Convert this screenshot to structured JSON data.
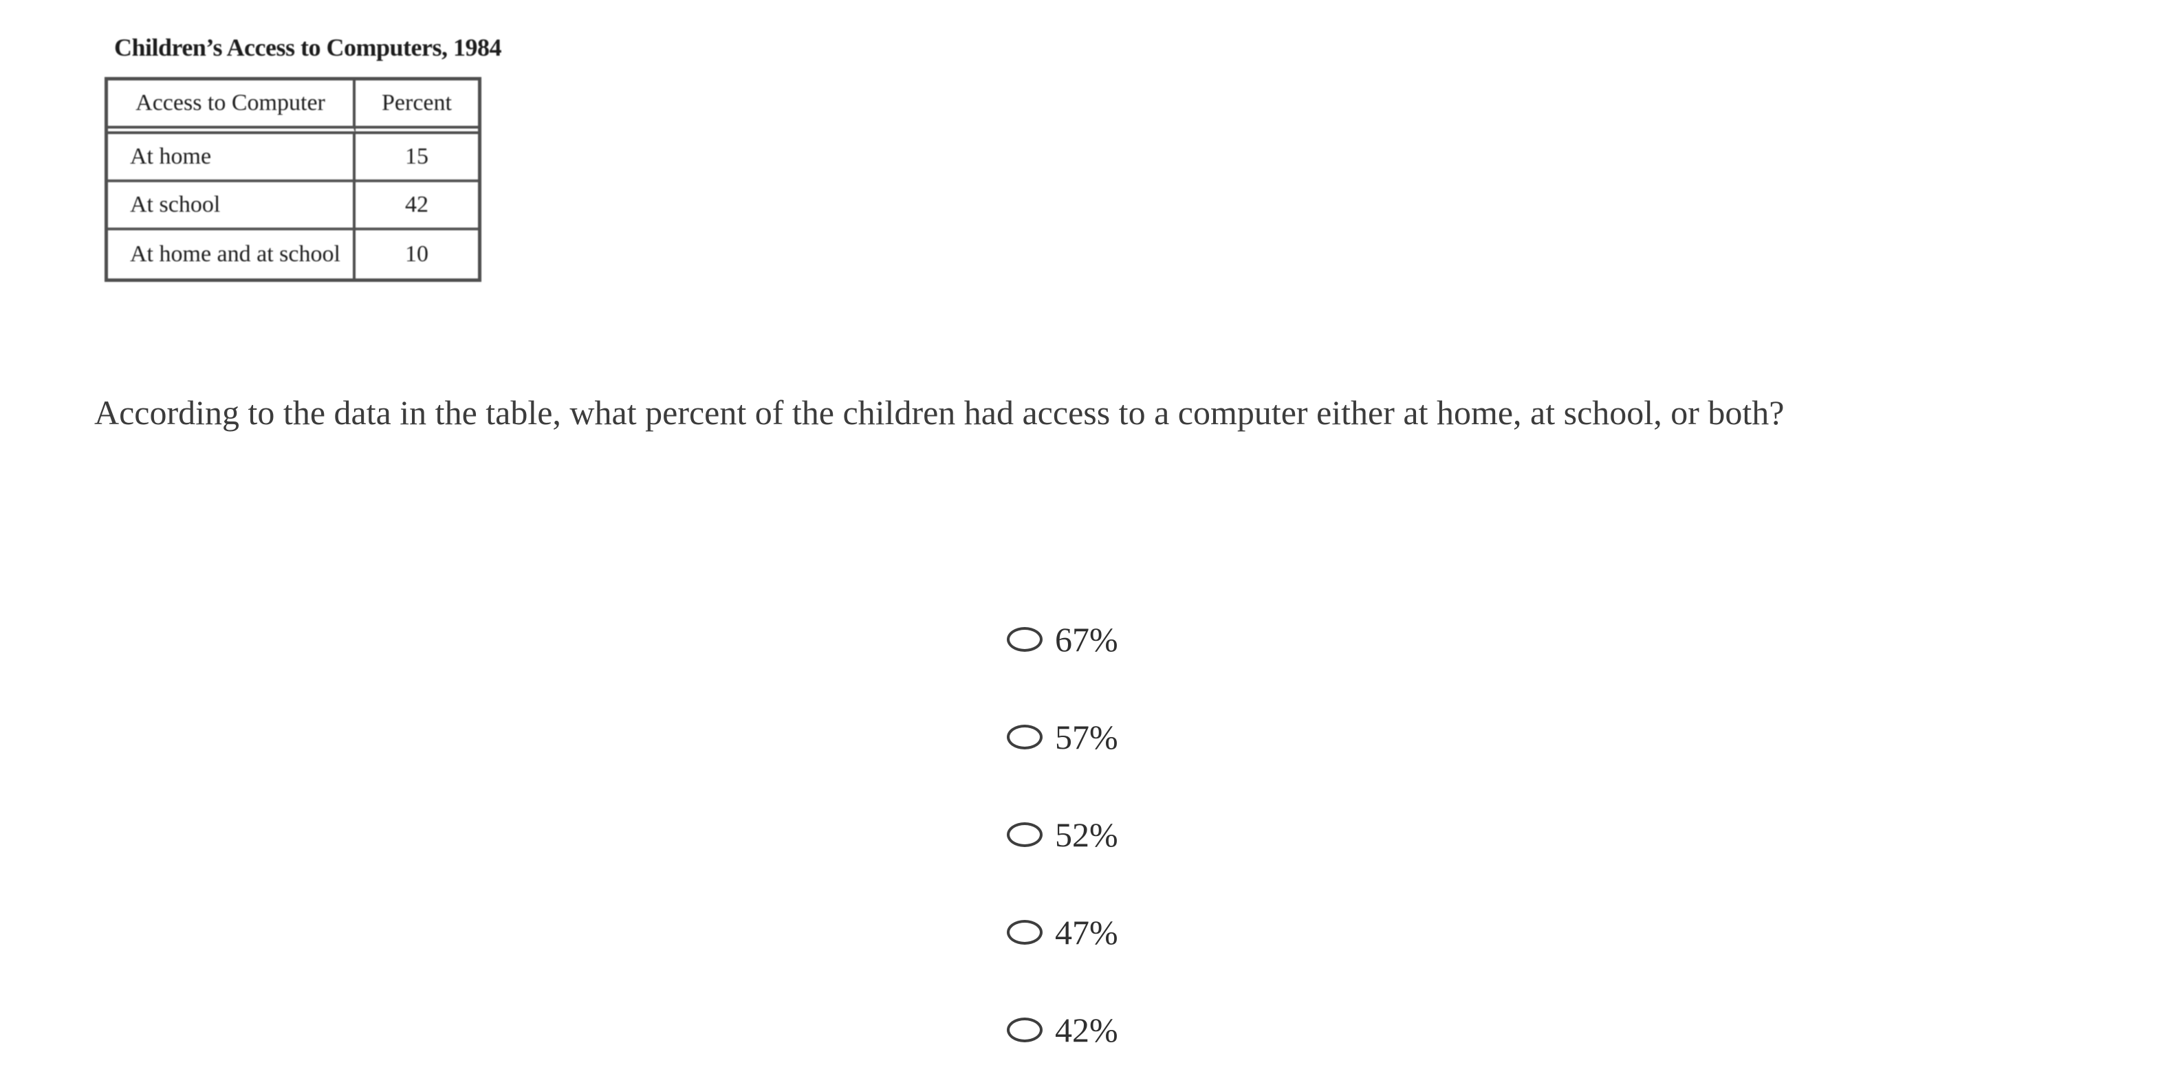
{
  "figure": {
    "title": "Children’s Access to Computers, 1984",
    "table": {
      "headers": [
        "Access to Computer",
        "Percent"
      ],
      "rows": [
        {
          "access": "At home",
          "percent": "15"
        },
        {
          "access": "At school",
          "percent": "42"
        },
        {
          "access": "At home and at school",
          "percent": "10"
        }
      ]
    }
  },
  "question": {
    "text": "According to the data in the table, what percent of the children had access to a computer either at home, at school, or both?"
  },
  "options": [
    {
      "label": "67%"
    },
    {
      "label": "57%"
    },
    {
      "label": "52%"
    },
    {
      "label": "47%"
    },
    {
      "label": "42%"
    }
  ],
  "colors": {
    "background": "#ffffff",
    "table_border": "#4f4f4f",
    "table_text": "#1d1d1d",
    "question_text": "#3c3c3c",
    "option_text": "#2f2f2f",
    "radio_outline": "#3e3e3e"
  }
}
